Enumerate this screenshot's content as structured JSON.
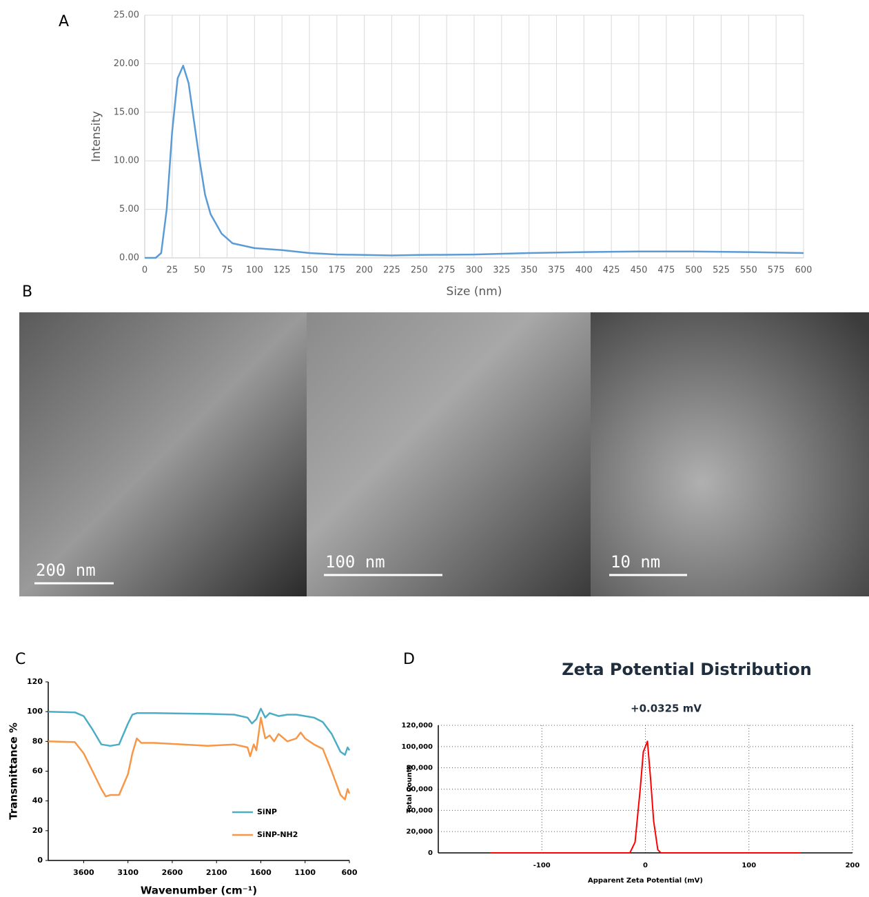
{
  "panel_labels": [
    "A",
    "B",
    "C",
    "D"
  ],
  "images": [
    {
      "scale_label": "200 nm"
    },
    {
      "scale_label": "100 nm"
    },
    {
      "scale_label": "10 nm"
    }
  ],
  "chart_data": [
    {
      "type": "line",
      "x_label": "Size (nm)",
      "y_label": "Intensity",
      "xlim": [
        0,
        600
      ],
      "ylim": [
        0,
        25
      ],
      "xticks": [
        0,
        25,
        50,
        75,
        100,
        125,
        150,
        175,
        200,
        225,
        250,
        275,
        300,
        325,
        350,
        375,
        400,
        425,
        450,
        475,
        500,
        525,
        550,
        575,
        600
      ],
      "yticks": [
        {
          "value": 0,
          "label": "0.00"
        },
        {
          "value": 5,
          "label": "5.00"
        },
        {
          "value": 10,
          "label": "10.00"
        },
        {
          "value": 15,
          "label": "15.00"
        },
        {
          "value": 20,
          "label": "20.00"
        },
        {
          "value": 25,
          "label": "25.00"
        }
      ],
      "grid": true,
      "series": [
        {
          "color": "#5b9bd5",
          "x": [
            0,
            10,
            15,
            20,
            25,
            30,
            35,
            40,
            45,
            50,
            55,
            60,
            70,
            80,
            100,
            125,
            150,
            175,
            200,
            225,
            250,
            300,
            350,
            400,
            450,
            500,
            550,
            600
          ],
          "values": [
            0,
            0,
            0.5,
            5,
            13,
            18.5,
            19.8,
            18,
            14,
            10,
            6.5,
            4.5,
            2.5,
            1.5,
            1.0,
            0.8,
            0.5,
            0.35,
            0.3,
            0.25,
            0.3,
            0.35,
            0.5,
            0.6,
            0.65,
            0.65,
            0.6,
            0.5
          ]
        }
      ]
    },
    {
      "type": "line",
      "x_label": "Wavenumber (cm⁻¹)",
      "y_label": "Transmittance %",
      "xlim": [
        4000,
        600
      ],
      "ylim": [
        0,
        120
      ],
      "xticks": [
        3600,
        3100,
        2600,
        2100,
        1600,
        1100,
        600
      ],
      "yticks": [
        0,
        20,
        40,
        60,
        80,
        100,
        120
      ],
      "grid": false,
      "legend": "lower right",
      "series": [
        {
          "name": "SiNP",
          "color": "#4bacc6",
          "x": [
            4000,
            3700,
            3600,
            3500,
            3400,
            3300,
            3200,
            3100,
            3050,
            3000,
            2800,
            2200,
            1900,
            1750,
            1700,
            1650,
            1600,
            1550,
            1500,
            1400,
            1300,
            1200,
            1100,
            1000,
            900,
            800,
            700,
            650,
            620,
            600
          ],
          "values": [
            100,
            99.5,
            97,
            88,
            78,
            77,
            78,
            92,
            98,
            99,
            99,
            98.5,
            98,
            96,
            92,
            95,
            102,
            96,
            99,
            97,
            98,
            98,
            97,
            96,
            93,
            85,
            73,
            71,
            76,
            74
          ]
        },
        {
          "name": "SiNP-NH2",
          "color": "#f79646",
          "x": [
            4000,
            3700,
            3600,
            3500,
            3400,
            3350,
            3300,
            3200,
            3100,
            3050,
            3000,
            2950,
            2800,
            2200,
            1900,
            1750,
            1720,
            1680,
            1650,
            1600,
            1550,
            1500,
            1450,
            1400,
            1300,
            1200,
            1150,
            1100,
            1000,
            900,
            800,
            700,
            650,
            620,
            600
          ],
          "values": [
            80,
            79.5,
            72,
            60,
            48,
            43,
            44,
            44,
            58,
            72,
            82,
            79,
            79,
            77,
            78,
            76,
            70,
            78,
            74,
            96,
            82,
            84,
            80,
            85,
            80,
            82,
            86,
            82,
            78,
            75,
            60,
            44,
            41,
            48,
            45
          ]
        }
      ]
    },
    {
      "type": "line",
      "title": "Zeta Potential Distribution",
      "subtitle": "+0.0325 mV",
      "x_label": "Apparent Zeta Potential (mV)",
      "y_label": "Total Counts",
      "xlim": [
        -200,
        200
      ],
      "ylim": [
        0,
        120000
      ],
      "xticks": [
        -100,
        0,
        100,
        200
      ],
      "yticks": [
        0,
        {
          "value": 20000,
          "label": "20,000"
        },
        {
          "value": 40000,
          "label": "40,000"
        },
        {
          "value": 60000,
          "label": "60,000"
        },
        {
          "value": 80000,
          "label": "80,000"
        },
        {
          "value": 100000,
          "label": "100,000"
        },
        {
          "value": 120000,
          "label": "120,000"
        }
      ],
      "grid": true,
      "series": [
        {
          "color": "#ff0000",
          "x": [
            -150,
            -15,
            -10,
            -5,
            -2,
            2,
            5,
            8,
            12,
            15,
            150
          ],
          "values": [
            0,
            0,
            10000,
            60000,
            95000,
            105000,
            70000,
            30000,
            3000,
            0,
            0
          ]
        }
      ]
    }
  ]
}
